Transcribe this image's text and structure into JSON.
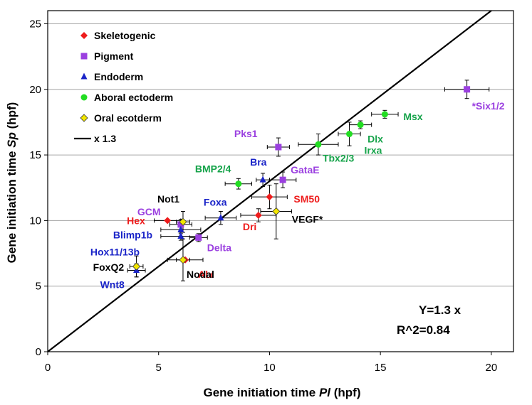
{
  "chart_data": {
    "type": "scatter",
    "xlabel_prefix": "Gene initiation time ",
    "xlabel_italic": "Pl",
    "xlabel_suffix": " (hpf)",
    "ylabel_prefix": "Gene initiation time ",
    "ylabel_italic": "Sp",
    "ylabel_suffix": " (hpf)",
    "xlim": [
      0,
      21
    ],
    "ylim": [
      0,
      26
    ],
    "x_ticks": [
      0,
      5,
      10,
      15,
      20
    ],
    "y_ticks": [
      0,
      5,
      10,
      15,
      20,
      25
    ],
    "grid": "horizontal",
    "legend_position": "top-left",
    "fit_line": {
      "label": "x 1.3",
      "slope": 1.3,
      "color": "#000000"
    },
    "stats": {
      "equation": "Y=1.3 x",
      "r2": "R^2=0.84"
    },
    "series": [
      {
        "name": "Skeletogenic",
        "color": "#ee1c1c",
        "marker": "diamond",
        "points": [
          {
            "label": "Hex",
            "x": 5.4,
            "y": 10.0,
            "xerr": 0.6,
            "yerr": 0,
            "label_color": "#ee1c1c"
          },
          {
            "label": "SM50",
            "x": 10.0,
            "y": 11.8,
            "xerr": 0.8,
            "yerr": 0.9,
            "label_color": "#ee1c1c"
          },
          {
            "label": "Dri",
            "x": 9.5,
            "y": 10.4,
            "xerr": 0.8,
            "yerr": 0.5,
            "label_color": "#ee1c1c"
          },
          {
            "label": "Alx",
            "x": 6.2,
            "y": 7.0,
            "xerr": 0.8,
            "yerr": 0,
            "label_color": "#ee1c1c"
          }
        ]
      },
      {
        "name": "Pigment",
        "color": "#9b40e0",
        "marker": "square",
        "points": [
          {
            "label": "*Six1/2",
            "x": 18.9,
            "y": 20.0,
            "xerr": 1.0,
            "yerr": 0.7,
            "label_color": "#9b40e0"
          },
          {
            "label": "Pks1",
            "x": 10.4,
            "y": 15.6,
            "xerr": 0.5,
            "yerr": 0.7,
            "label_color": "#9b40e0"
          },
          {
            "label": "GataE",
            "x": 10.6,
            "y": 13.1,
            "xerr": 0.6,
            "yerr": 0.6,
            "label_color": "#9b40e0"
          },
          {
            "label": "GCM",
            "x": 6.0,
            "y": 9.7,
            "xerr": 0.5,
            "yerr": 0.4,
            "label_color": "#9b40e0"
          },
          {
            "label": "Delta",
            "x": 6.8,
            "y": 8.7,
            "xerr": 0.4,
            "yerr": 0.3,
            "label_color": "#9b40e0"
          }
        ]
      },
      {
        "name": "Endoderm",
        "color": "#1a24c8",
        "marker": "triangle",
        "points": [
          {
            "label": "Bra",
            "x": 9.7,
            "y": 13.1,
            "xerr": 0.3,
            "yerr": 0.5,
            "label_color": "#1a24c8"
          },
          {
            "label": "Foxa",
            "x": 7.8,
            "y": 10.2,
            "xerr": 0.7,
            "yerr": 0.5,
            "label_color": "#1a24c8"
          },
          {
            "label": "Blimp1b",
            "x": 6.0,
            "y": 9.3,
            "xerr": 0.9,
            "yerr": 0.3,
            "label_color": "#1a24c8"
          },
          {
            "label": "Hox11/13b",
            "x": 6.0,
            "y": 8.8,
            "xerr": 0.9,
            "yerr": 0.3,
            "label_color": "#1a24c8"
          },
          {
            "label": "Wnt8",
            "x": 4.0,
            "y": 6.2,
            "xerr": 0.4,
            "yerr": 0.5,
            "label_color": "#1a24c8"
          }
        ]
      },
      {
        "name": "Aboral ectoderm",
        "color": "#22dd22",
        "marker": "circle",
        "points": [
          {
            "label": "Msx",
            "x": 15.2,
            "y": 18.1,
            "xerr": 0.6,
            "yerr": 0.3,
            "label_color": "#16a34a"
          },
          {
            "label": "Dlx",
            "x": 14.1,
            "y": 17.3,
            "xerr": 0.5,
            "yerr": 0.3,
            "label_color": "#16a34a"
          },
          {
            "label": "Irxa",
            "x": 13.6,
            "y": 16.6,
            "xerr": 0.5,
            "yerr": 0.9,
            "label_color": "#16a34a"
          },
          {
            "label": "Tbx2/3",
            "x": 12.2,
            "y": 15.8,
            "xerr": 0.9,
            "yerr": 0.8,
            "label_color": "#16a34a"
          },
          {
            "label": "BMP2/4",
            "x": 8.6,
            "y": 12.8,
            "xerr": 0.6,
            "yerr": 0.4,
            "label_color": "#16a34a"
          }
        ]
      },
      {
        "name": "Oral ecotderm",
        "color": "#f2e600",
        "marker": "diamond",
        "points": [
          {
            "label": "Not1",
            "x": 6.1,
            "y": 9.9,
            "xerr": 0.3,
            "yerr": 0.8,
            "label_color": "#000000"
          },
          {
            "label": "VEGF*",
            "x": 10.3,
            "y": 10.7,
            "xerr": 0.7,
            "yerr": 2.1,
            "label_color": "#000000"
          },
          {
            "label": "FoxQ2",
            "x": 4.0,
            "y": 6.5,
            "xerr": 0.3,
            "yerr": 0.8,
            "label_color": "#000000"
          },
          {
            "label": "Nodal",
            "x": 6.1,
            "y": 7.0,
            "xerr": 0.3,
            "yerr": 1.6,
            "label_color": "#000000"
          }
        ]
      }
    ]
  }
}
